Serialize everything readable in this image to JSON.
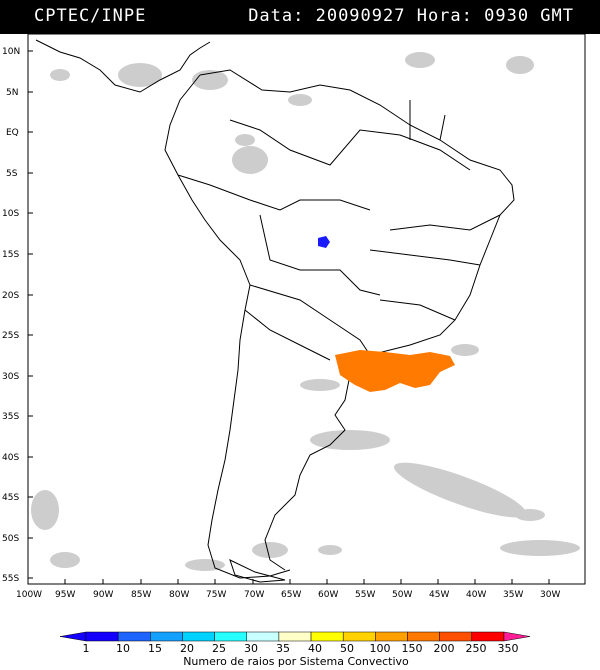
{
  "header": {
    "source": "CPTEC/INPE",
    "datetime": "Data: 20090927 Hora: 0930 GMT"
  },
  "map": {
    "lat_labels": [
      "10N",
      "5N",
      "EQ",
      "5S",
      "10S",
      "15S",
      "20S",
      "25S",
      "30S",
      "35S",
      "40S",
      "45S",
      "50S",
      "55S"
    ],
    "lon_labels": [
      "100W",
      "95W",
      "90W",
      "85W",
      "80W",
      "75W",
      "70W",
      "65W",
      "60W",
      "55W",
      "50W",
      "45W",
      "40W",
      "35W",
      "30W"
    ],
    "colors": {
      "land_border": "#000000",
      "cloud": "#c8c8c8",
      "convective_orange": "#ff7a00",
      "convective_blue": "#1a1aff"
    }
  },
  "colorbar": {
    "ticks": [
      "1",
      "10",
      "15",
      "20",
      "25",
      "30",
      "35",
      "40",
      "50",
      "100",
      "150",
      "200",
      "250",
      "350"
    ],
    "colors": [
      "#1400ff",
      "#1e64ff",
      "#14a0ff",
      "#00d2ff",
      "#28ffff",
      "#c8ffff",
      "#ffffc8",
      "#ffff00",
      "#ffd200",
      "#ffa000",
      "#ff7800",
      "#ff5000",
      "#ff0000",
      "#ff1e96"
    ],
    "caption": "Numero de raios por Sistema Convectivo"
  }
}
